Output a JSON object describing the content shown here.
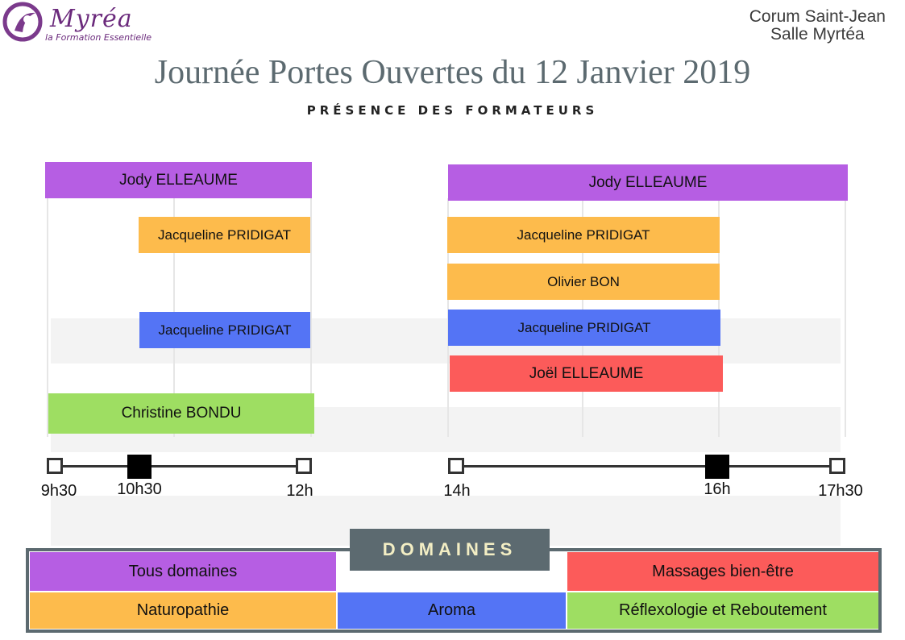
{
  "header": {
    "logo_text": "Myréa",
    "logo_tagline": "la Formation Essentielle",
    "venue_line1": "Corum Saint-Jean",
    "venue_line2": "Salle Myrtéa",
    "title": "Journée Portes Ouvertes du 12 Janvier 2019",
    "subtitle": "PRÉSENCE DES FORMATEURS"
  },
  "morning": {
    "bars": [
      {
        "name": "Jody ELLEAUME",
        "domain": "Tous domaines",
        "start": "9h30",
        "end": "12h"
      },
      {
        "name": "Jacqueline PRIDIGAT",
        "domain": "Naturopathie",
        "start": "10h30",
        "end": "12h"
      },
      {
        "name": "Jacqueline PRIDIGAT",
        "domain": "Aroma",
        "start": "10h30",
        "end": "12h"
      },
      {
        "name": "Christine BONDU",
        "domain": "Réflexologie et Reboutement",
        "start": "9h30",
        "end": "12h"
      }
    ],
    "timeline": [
      "9h30",
      "10h30",
      "12h"
    ]
  },
  "afternoon": {
    "bars": [
      {
        "name": "Jody ELLEAUME",
        "domain": "Tous domaines",
        "start": "14h",
        "end": "17h30"
      },
      {
        "name": "Jacqueline PRIDIGAT",
        "domain": "Naturopathie",
        "start": "14h",
        "end": "16h"
      },
      {
        "name": "Olivier BON",
        "domain": "Naturopathie",
        "start": "14h",
        "end": "16h"
      },
      {
        "name": "Jacqueline PRIDIGAT",
        "domain": "Aroma",
        "start": "14h",
        "end": "16h"
      },
      {
        "name": "Joël ELLEAUME",
        "domain": "Massages bien-être",
        "start": "14h",
        "end": "16h"
      }
    ],
    "timeline": [
      "14h",
      "16h",
      "17h30"
    ]
  },
  "legend": {
    "title": "DOMAINES",
    "items": {
      "all": "Tous domaines",
      "naturo": "Naturopathie",
      "aroma": "Aroma",
      "massage": "Massages bien-être",
      "reflexo": "Réflexologie et Reboutement"
    }
  },
  "colors": {
    "all": "#b65ee3",
    "naturo": "#fdbb4c",
    "aroma": "#5474f5",
    "massage": "#fc5b5a",
    "reflexo": "#9ede62",
    "accent": "#5c6a70"
  }
}
